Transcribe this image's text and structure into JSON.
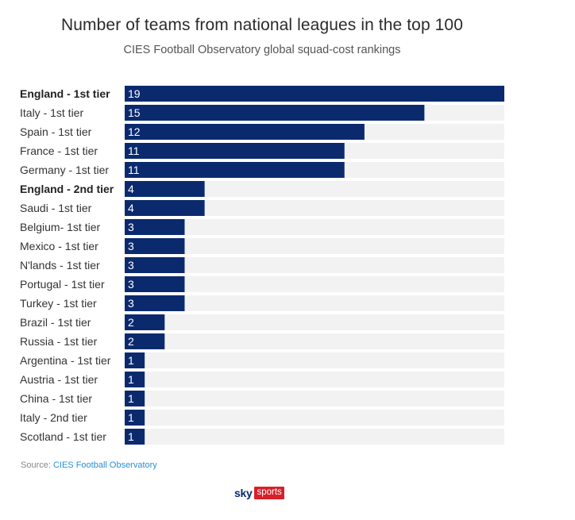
{
  "chart_data": {
    "type": "bar",
    "orientation": "horizontal",
    "title": "Number of teams from national leagues in the top 100",
    "subtitle": "CIES Football Observatory global squad-cost rankings",
    "categories": [
      "England - 1st tier",
      "Italy - 1st tier",
      "Spain - 1st tier",
      "France - 1st tier",
      "Germany - 1st tier",
      "England - 2nd tier",
      "Saudi - 1st tier",
      "Belgium- 1st tier",
      "Mexico - 1st tier",
      "N'lands - 1st tier",
      "Portugal - 1st tier",
      "Turkey - 1st tier",
      "Brazil - 1st tier",
      "Russia - 1st tier",
      "Argentina - 1st tier",
      "Austria - 1st tier",
      "China - 1st tier",
      "Italy - 2nd tier",
      "Scotland - 1st tier"
    ],
    "bold_categories": [
      "England - 1st tier",
      "England - 2nd tier"
    ],
    "values": [
      19,
      15,
      12,
      11,
      11,
      4,
      4,
      3,
      3,
      3,
      3,
      3,
      2,
      2,
      1,
      1,
      1,
      1,
      1
    ],
    "xlim": [
      0,
      19
    ],
    "bar_color": "#0b2a6e",
    "track_color": "#f2f2f2",
    "xlabel": "",
    "ylabel": ""
  },
  "source": {
    "prefix": "Source: ",
    "link_text": "CIES Football Observatory"
  },
  "logo": {
    "sky": "sky",
    "sports": "sports"
  }
}
